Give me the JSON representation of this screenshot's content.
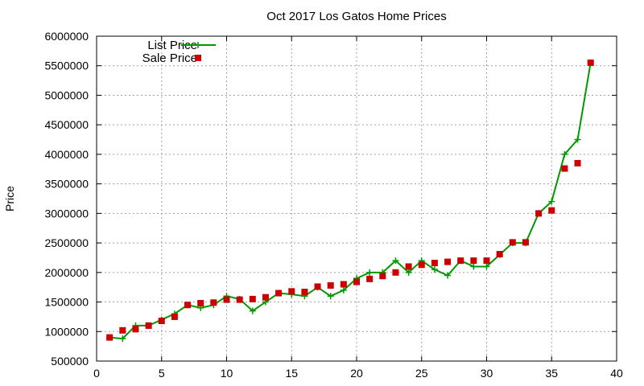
{
  "chart_data": {
    "type": "line",
    "title": "Oct 2017 Los Gatos Home Prices",
    "xlabel": "",
    "ylabel": "Price",
    "xlim": [
      0,
      40
    ],
    "ylim": [
      500000,
      6000000
    ],
    "xticks": [
      0,
      5,
      10,
      15,
      20,
      25,
      30,
      35,
      40
    ],
    "yticks": [
      500000,
      1000000,
      1500000,
      2000000,
      2500000,
      3000000,
      3500000,
      4000000,
      4500000,
      5000000,
      5500000,
      6000000
    ],
    "grid": true,
    "legend_position": "top-left",
    "series": [
      {
        "name": "List Price",
        "style": "line+cross",
        "color": "#009900",
        "x": [
          1,
          2,
          3,
          4,
          5,
          6,
          7,
          8,
          9,
          10,
          11,
          12,
          13,
          14,
          15,
          16,
          17,
          18,
          19,
          20,
          21,
          22,
          23,
          24,
          25,
          26,
          27,
          28,
          29,
          30,
          31,
          32,
          33,
          34,
          35,
          36,
          37,
          38
        ],
        "y": [
          900000,
          880000,
          1100000,
          1100000,
          1200000,
          1300000,
          1450000,
          1400000,
          1450000,
          1600000,
          1550000,
          1350000,
          1500000,
          1650000,
          1630000,
          1600000,
          1750000,
          1600000,
          1700000,
          1900000,
          2000000,
          2000000,
          2200000,
          2000000,
          2200000,
          2050000,
          1950000,
          2200000,
          2100000,
          2100000,
          2300000,
          2500000,
          2500000,
          3000000,
          3200000,
          4000000,
          4250000,
          5550000
        ]
      },
      {
        "name": "Sale Price",
        "style": "square",
        "color": "#cc0000",
        "x": [
          1,
          2,
          3,
          4,
          5,
          6,
          7,
          8,
          9,
          10,
          11,
          12,
          13,
          14,
          15,
          16,
          17,
          18,
          19,
          20,
          21,
          22,
          23,
          24,
          25,
          26,
          27,
          28,
          29,
          30,
          31,
          32,
          33,
          34,
          35,
          36,
          37,
          38
        ],
        "y": [
          900000,
          1020000,
          1040000,
          1100000,
          1180000,
          1250000,
          1450000,
          1480000,
          1490000,
          1540000,
          1540000,
          1550000,
          1580000,
          1650000,
          1680000,
          1670000,
          1760000,
          1780000,
          1800000,
          1840000,
          1890000,
          1940000,
          2000000,
          2100000,
          2130000,
          2160000,
          2180000,
          2200000,
          2200000,
          2200000,
          2310000,
          2510000,
          2510000,
          3000000,
          3050000,
          3760000,
          3850000,
          5550000
        ]
      }
    ]
  }
}
